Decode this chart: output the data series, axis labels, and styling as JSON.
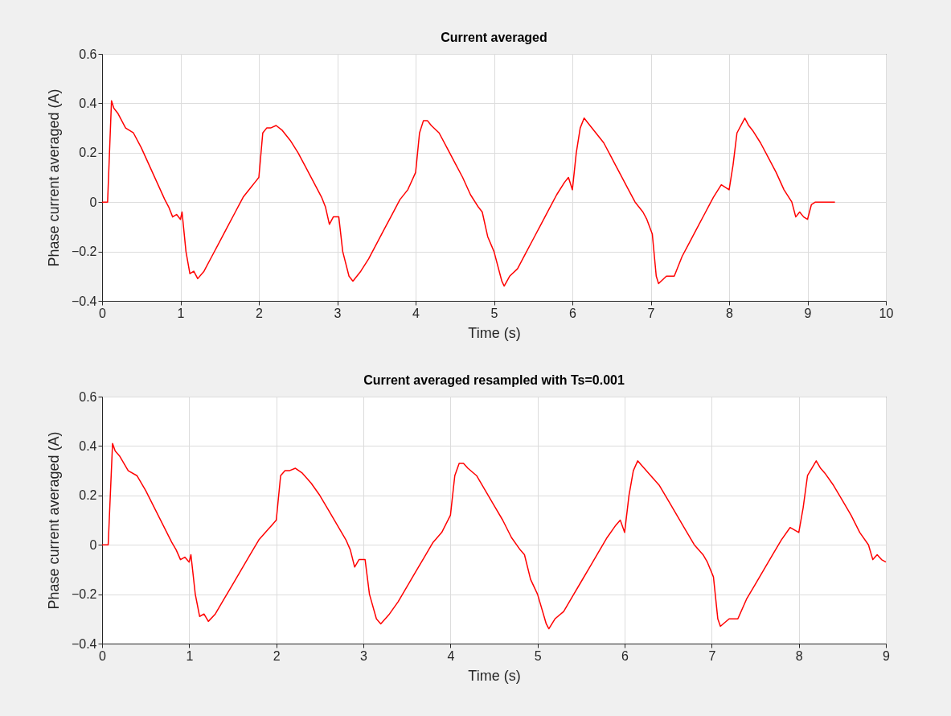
{
  "chart_data": [
    {
      "type": "line",
      "title": "Current averaged",
      "xlabel": "Time (s)",
      "ylabel": "Phase current averaged (A)",
      "xlim": [
        0,
        10
      ],
      "ylim": [
        -0.4,
        0.6
      ],
      "xticks": [
        0,
        1,
        2,
        3,
        4,
        5,
        6,
        7,
        8,
        9,
        10
      ],
      "yticks": [
        -0.4,
        -0.2,
        0,
        0.2,
        0.4,
        0.6
      ],
      "grid": true,
      "x": [
        0,
        0.07,
        0.12,
        0.15,
        0.2,
        0.3,
        0.4,
        0.5,
        0.6,
        0.7,
        0.8,
        0.85,
        0.9,
        0.95,
        1.0,
        1.02,
        1.07,
        1.12,
        1.17,
        1.22,
        1.3,
        1.4,
        1.5,
        1.6,
        1.7,
        1.8,
        1.9,
        1.95,
        2.0,
        2.05,
        2.1,
        2.15,
        2.22,
        2.3,
        2.4,
        2.5,
        2.6,
        2.7,
        2.8,
        2.85,
        2.9,
        2.95,
        3.02,
        3.07,
        3.15,
        3.2,
        3.3,
        3.4,
        3.5,
        3.6,
        3.7,
        3.8,
        3.9,
        4.0,
        4.05,
        4.1,
        4.15,
        4.2,
        4.3,
        4.4,
        4.5,
        4.6,
        4.7,
        4.8,
        4.85,
        4.92,
        5.0,
        5.1,
        5.13,
        5.2,
        5.3,
        5.4,
        5.5,
        5.6,
        5.7,
        5.8,
        5.9,
        5.95,
        6.0,
        6.05,
        6.1,
        6.15,
        6.2,
        6.3,
        6.4,
        6.5,
        6.6,
        6.7,
        6.8,
        6.9,
        6.95,
        7.02,
        7.07,
        7.1,
        7.2,
        7.3,
        7.4,
        7.5,
        7.6,
        7.7,
        7.8,
        7.9,
        8.0,
        8.05,
        8.1,
        8.2,
        8.25,
        8.3,
        8.4,
        8.5,
        8.6,
        8.7,
        8.8,
        8.85,
        8.9,
        8.95,
        9.0,
        9.05,
        9.1,
        9.35
      ],
      "series": [
        {
          "color": "#ff0000",
          "values": [
            0,
            0,
            0.41,
            0.38,
            0.36,
            0.3,
            0.28,
            0.22,
            0.15,
            0.08,
            0.01,
            -0.02,
            -0.06,
            -0.05,
            -0.07,
            -0.04,
            -0.2,
            -0.29,
            -0.28,
            -0.31,
            -0.28,
            -0.22,
            -0.16,
            -0.1,
            -0.04,
            0.02,
            0.06,
            0.08,
            0.1,
            0.28,
            0.3,
            0.3,
            0.31,
            0.29,
            0.25,
            0.2,
            0.14,
            0.08,
            0.02,
            -0.02,
            -0.09,
            -0.06,
            -0.06,
            -0.2,
            -0.3,
            -0.32,
            -0.28,
            -0.23,
            -0.17,
            -0.11,
            -0.05,
            0.01,
            0.05,
            0.12,
            0.28,
            0.33,
            0.33,
            0.31,
            0.28,
            0.22,
            0.16,
            0.1,
            0.03,
            -0.02,
            -0.04,
            -0.14,
            -0.2,
            -0.32,
            -0.34,
            -0.3,
            -0.27,
            -0.21,
            -0.15,
            -0.09,
            -0.03,
            0.03,
            0.08,
            0.1,
            0.05,
            0.2,
            0.3,
            0.34,
            0.32,
            0.28,
            0.24,
            0.18,
            0.12,
            0.06,
            0,
            -0.04,
            -0.07,
            -0.13,
            -0.3,
            -0.33,
            -0.3,
            -0.3,
            -0.22,
            -0.16,
            -0.1,
            -0.04,
            0.02,
            0.07,
            0.05,
            0.15,
            0.28,
            0.34,
            0.31,
            0.29,
            0.24,
            0.18,
            0.12,
            0.05,
            0,
            -0.06,
            -0.04,
            -0.06,
            -0.07,
            -0.01,
            0,
            0
          ]
        }
      ]
    },
    {
      "type": "line",
      "title": "Current averaged resampled with Ts=0.001",
      "xlabel": "Time (s)",
      "ylabel": "Phase current averaged (A)",
      "xlim": [
        0,
        9
      ],
      "ylim": [
        -0.4,
        0.6
      ],
      "xticks": [
        0,
        1,
        2,
        3,
        4,
        5,
        6,
        7,
        8,
        9
      ],
      "yticks": [
        -0.4,
        -0.2,
        0,
        0.2,
        0.4,
        0.6
      ],
      "grid": true,
      "x": [
        0,
        0.07,
        0.12,
        0.15,
        0.2,
        0.3,
        0.4,
        0.5,
        0.6,
        0.7,
        0.8,
        0.85,
        0.9,
        0.95,
        1.0,
        1.02,
        1.07,
        1.12,
        1.17,
        1.22,
        1.3,
        1.4,
        1.5,
        1.6,
        1.7,
        1.8,
        1.9,
        1.95,
        2.0,
        2.05,
        2.1,
        2.15,
        2.22,
        2.3,
        2.4,
        2.5,
        2.6,
        2.7,
        2.8,
        2.85,
        2.9,
        2.95,
        3.02,
        3.07,
        3.15,
        3.2,
        3.3,
        3.4,
        3.5,
        3.6,
        3.7,
        3.8,
        3.9,
        4.0,
        4.05,
        4.1,
        4.15,
        4.2,
        4.3,
        4.4,
        4.5,
        4.6,
        4.7,
        4.8,
        4.85,
        4.92,
        5.0,
        5.1,
        5.13,
        5.2,
        5.3,
        5.4,
        5.5,
        5.6,
        5.7,
        5.8,
        5.9,
        5.95,
        6.0,
        6.05,
        6.1,
        6.15,
        6.2,
        6.3,
        6.4,
        6.5,
        6.6,
        6.7,
        6.8,
        6.9,
        6.95,
        7.02,
        7.07,
        7.1,
        7.2,
        7.3,
        7.4,
        7.5,
        7.6,
        7.7,
        7.8,
        7.9,
        8.0,
        8.05,
        8.1,
        8.2,
        8.25,
        8.3,
        8.4,
        8.5,
        8.6,
        8.7,
        8.8,
        8.85,
        8.9,
        8.95,
        9.0
      ],
      "series": [
        {
          "color": "#ff0000",
          "values": [
            0,
            0,
            0.41,
            0.38,
            0.36,
            0.3,
            0.28,
            0.22,
            0.15,
            0.08,
            0.01,
            -0.02,
            -0.06,
            -0.05,
            -0.07,
            -0.04,
            -0.2,
            -0.29,
            -0.28,
            -0.31,
            -0.28,
            -0.22,
            -0.16,
            -0.1,
            -0.04,
            0.02,
            0.06,
            0.08,
            0.1,
            0.28,
            0.3,
            0.3,
            0.31,
            0.29,
            0.25,
            0.2,
            0.14,
            0.08,
            0.02,
            -0.02,
            -0.09,
            -0.06,
            -0.06,
            -0.2,
            -0.3,
            -0.32,
            -0.28,
            -0.23,
            -0.17,
            -0.11,
            -0.05,
            0.01,
            0.05,
            0.12,
            0.28,
            0.33,
            0.33,
            0.31,
            0.28,
            0.22,
            0.16,
            0.1,
            0.03,
            -0.02,
            -0.04,
            -0.14,
            -0.2,
            -0.32,
            -0.34,
            -0.3,
            -0.27,
            -0.21,
            -0.15,
            -0.09,
            -0.03,
            0.03,
            0.08,
            0.1,
            0.05,
            0.2,
            0.3,
            0.34,
            0.32,
            0.28,
            0.24,
            0.18,
            0.12,
            0.06,
            0,
            -0.04,
            -0.07,
            -0.13,
            -0.3,
            -0.33,
            -0.3,
            -0.3,
            -0.22,
            -0.16,
            -0.1,
            -0.04,
            0.02,
            0.07,
            0.05,
            0.15,
            0.28,
            0.34,
            0.31,
            0.29,
            0.24,
            0.18,
            0.12,
            0.05,
            0,
            -0.06,
            -0.04,
            -0.06,
            -0.07
          ]
        }
      ]
    }
  ]
}
